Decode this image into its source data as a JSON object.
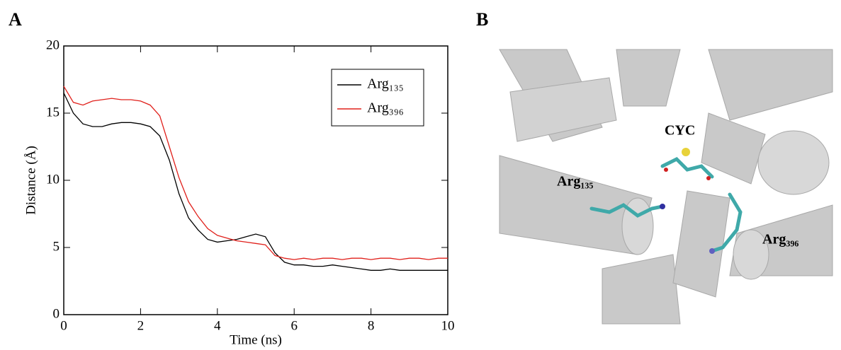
{
  "panel_labels": [
    "A",
    "B"
  ],
  "chart_data": {
    "type": "line",
    "x_label": "Time (ns)",
    "y_label": "Distance (Å)",
    "x": [
      0,
      0.25,
      0.5,
      0.75,
      1,
      1.25,
      1.5,
      1.75,
      2,
      2.25,
      2.5,
      2.75,
      3,
      3.25,
      3.5,
      3.75,
      4,
      4.25,
      4.5,
      4.75,
      5,
      5.25,
      5.5,
      5.75,
      6,
      6.25,
      6.5,
      6.75,
      7,
      7.25,
      7.5,
      7.75,
      8,
      8.25,
      8.5,
      8.75,
      9,
      9.25,
      9.5,
      9.75,
      10
    ],
    "series": [
      {
        "name": "Arg₁₃₅",
        "color": "#000000",
        "values": [
          16.5,
          15,
          14.2,
          14,
          14,
          14.2,
          14.3,
          14.3,
          14.2,
          14.0,
          13.3,
          11.5,
          9,
          7.2,
          6.3,
          5.6,
          5.4,
          5.5,
          5.6,
          5.8,
          6.0,
          5.8,
          4.6,
          3.9,
          3.7,
          3.7,
          3.6,
          3.6,
          3.7,
          3.6,
          3.5,
          3.4,
          3.3,
          3.3,
          3.4,
          3.3,
          3.3,
          3.3,
          3.3,
          3.3,
          3.3
        ]
      },
      {
        "name": "Arg₃₉₆",
        "color": "#e0201b",
        "values": [
          17,
          15.8,
          15.6,
          15.9,
          16,
          16.1,
          16,
          16,
          15.9,
          15.6,
          14.8,
          12.5,
          10.2,
          8.4,
          7.3,
          6.4,
          5.9,
          5.7,
          5.5,
          5.4,
          5.3,
          5.2,
          4.4,
          4.2,
          4.1,
          4.2,
          4.1,
          4.2,
          4.2,
          4.1,
          4.2,
          4.2,
          4.1,
          4.2,
          4.2,
          4.1,
          4.2,
          4.2,
          4.1,
          4.2,
          4.2
        ]
      }
    ],
    "xlim": [
      0,
      10
    ],
    "xticks": [
      0,
      2,
      4,
      6,
      8,
      10
    ],
    "ylim": [
      0,
      20
    ],
    "yticks": [
      0,
      5,
      10,
      15,
      20
    ],
    "legend": "upper-right"
  },
  "panel_b": {
    "annotations": [
      "CYC",
      "Arg₁₃₅",
      "Arg₃₉₆"
    ]
  }
}
